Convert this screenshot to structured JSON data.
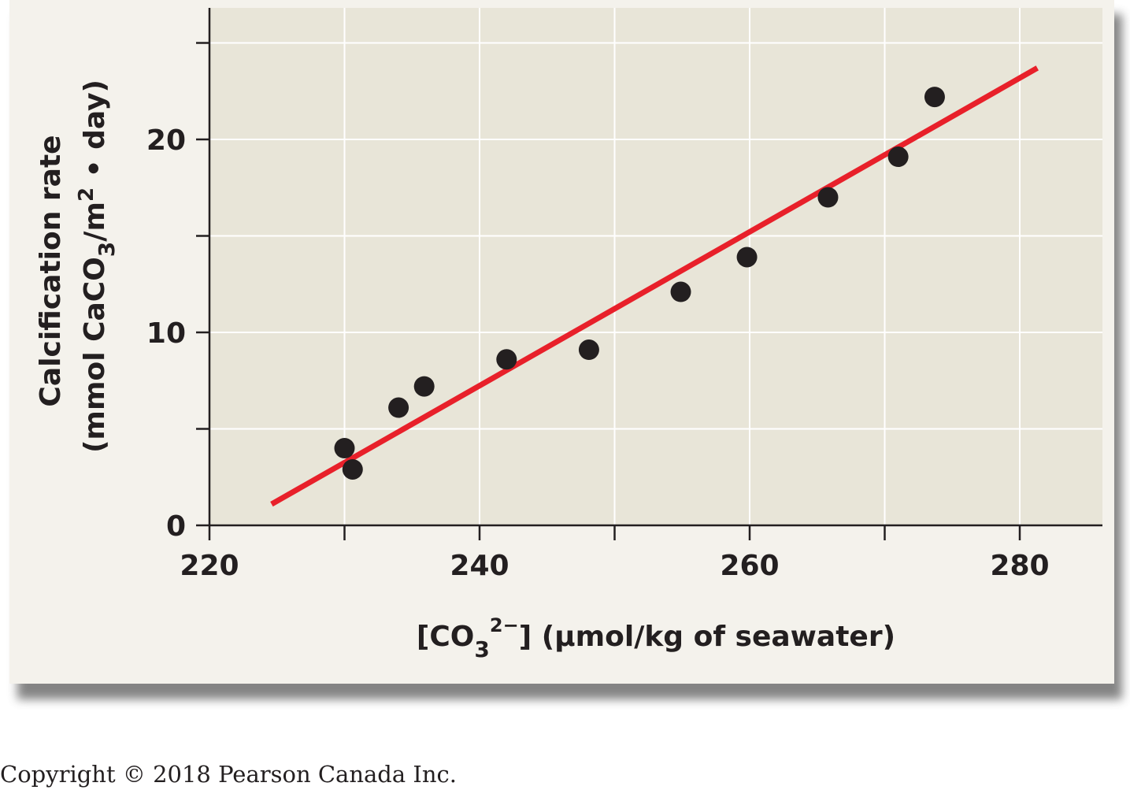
{
  "chart_data": {
    "type": "scatter",
    "title": "",
    "xlabel": {
      "parts": [
        "[CO",
        "3",
        "2−",
        "] (μmol/kg of seawater)"
      ]
    },
    "ylabel": {
      "line1": "Calcification rate",
      "line2_parts": [
        "(mmol CaCO",
        "3",
        "/m",
        "2",
        " • day)"
      ]
    },
    "xlim": [
      220,
      286
    ],
    "ylim": [
      0,
      26.5
    ],
    "x_ticks": [
      220,
      230,
      240,
      250,
      260,
      270,
      280
    ],
    "x_tick_labels": [
      "220",
      "",
      "240",
      "",
      "260",
      "",
      "280"
    ],
    "y_ticks": [
      0,
      5,
      10,
      15,
      20,
      25
    ],
    "y_tick_labels": [
      "0",
      "",
      "10",
      "",
      "20",
      ""
    ],
    "grid": true,
    "points": [
      {
        "x": 230.0,
        "y": 4.0
      },
      {
        "x": 230.6,
        "y": 2.9
      },
      {
        "x": 234.0,
        "y": 6.1
      },
      {
        "x": 235.9,
        "y": 7.2
      },
      {
        "x": 242.0,
        "y": 8.6
      },
      {
        "x": 248.1,
        "y": 9.1
      },
      {
        "x": 254.9,
        "y": 12.1
      },
      {
        "x": 259.8,
        "y": 13.9
      },
      {
        "x": 265.8,
        "y": 17.0
      },
      {
        "x": 271.0,
        "y": 19.1
      },
      {
        "x": 273.7,
        "y": 22.2
      }
    ],
    "fit_line": {
      "x": [
        224.6,
        281.3
      ],
      "y": [
        1.1,
        23.7
      ]
    },
    "colors": {
      "plot_bg": "#e8e5d8",
      "card_bg": "#f4f2ec",
      "grid": "#ffffff",
      "axis": "#231f20",
      "point": "#231f20",
      "fit_line": "#e8202a"
    }
  },
  "footer": {
    "copyright": "Copyright © 2018 Pearson Canada Inc."
  }
}
